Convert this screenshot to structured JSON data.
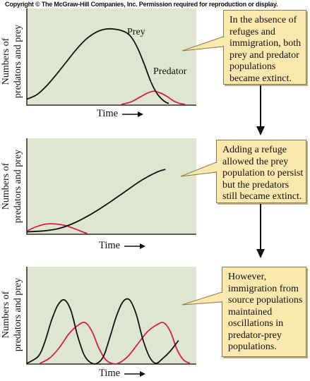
{
  "copyright": "Copyright © The McGraw-Hill Companies, Inc. Permission required for reproduction or display.",
  "y_axis_label": [
    "Numbers of",
    "predators and prey"
  ],
  "x_axis_label": "Time",
  "curve_labels": {
    "prey": "Prey",
    "predator": "Predator"
  },
  "colors": {
    "panel": "#dfe6cf",
    "callout": "#fbe8ad",
    "prey": "#111111",
    "predator": "#d81b4d"
  },
  "panels": [
    {
      "callout": [
        "In the absence of",
        "refuges and",
        "immigration, both",
        "prey and predator",
        "populations",
        "became extinct."
      ],
      "prey": [
        [
          0,
          6
        ],
        [
          6,
          11
        ],
        [
          12,
          21
        ],
        [
          18,
          34
        ],
        [
          24,
          48
        ],
        [
          30,
          62
        ],
        [
          36,
          74
        ],
        [
          42,
          82
        ],
        [
          48,
          86
        ],
        [
          54,
          86
        ],
        [
          60,
          83
        ],
        [
          64,
          77
        ],
        [
          68,
          64
        ],
        [
          72,
          46
        ],
        [
          76,
          26
        ],
        [
          80,
          12
        ],
        [
          84,
          4
        ],
        [
          87,
          1
        ]
      ],
      "predator": [
        [
          58,
          0
        ],
        [
          64,
          3
        ],
        [
          70,
          9
        ],
        [
          74,
          13
        ],
        [
          78,
          15
        ],
        [
          82,
          13
        ],
        [
          86,
          9
        ],
        [
          90,
          4
        ],
        [
          94,
          1
        ],
        [
          97,
          0
        ]
      ]
    },
    {
      "callout": [
        "Adding a refuge",
        "allowed the prey",
        "population to persist",
        "but the predators",
        "still became extinct."
      ],
      "prey": [
        [
          0,
          2
        ],
        [
          10,
          3
        ],
        [
          20,
          6
        ],
        [
          30,
          13
        ],
        [
          40,
          23
        ],
        [
          50,
          35
        ],
        [
          60,
          48
        ],
        [
          70,
          61
        ],
        [
          80,
          71
        ],
        [
          85,
          74
        ]
      ],
      "predator": [
        [
          0,
          3
        ],
        [
          6,
          8
        ],
        [
          12,
          11
        ],
        [
          18,
          11
        ],
        [
          24,
          9
        ],
        [
          30,
          5
        ],
        [
          34,
          2
        ],
        [
          37,
          0
        ]
      ]
    },
    {
      "callout": [
        "However,",
        "immigration from",
        "source populations",
        "maintained",
        "oscillations in",
        "predator-prey",
        "populations."
      ],
      "prey": [
        [
          0,
          0
        ],
        [
          7,
          8
        ],
        [
          11,
          24
        ],
        [
          15,
          48
        ],
        [
          19,
          66
        ],
        [
          23,
          72
        ],
        [
          27,
          60
        ],
        [
          31,
          32
        ],
        [
          35,
          10
        ],
        [
          39,
          1
        ],
        [
          43,
          0
        ],
        [
          47,
          8
        ],
        [
          51,
          30
        ],
        [
          55,
          54
        ],
        [
          59,
          70
        ],
        [
          63,
          72
        ],
        [
          67,
          56
        ],
        [
          71,
          28
        ],
        [
          75,
          8
        ],
        [
          79,
          0
        ],
        [
          83,
          5
        ],
        [
          88,
          14
        ],
        [
          93,
          26
        ]
      ],
      "predator": [
        [
          8,
          0
        ],
        [
          14,
          6
        ],
        [
          20,
          18
        ],
        [
          26,
          34
        ],
        [
          32,
          44
        ],
        [
          36,
          46
        ],
        [
          40,
          36
        ],
        [
          44,
          18
        ],
        [
          48,
          5
        ],
        [
          52,
          0
        ],
        [
          56,
          0
        ],
        [
          62,
          8
        ],
        [
          68,
          22
        ],
        [
          74,
          36
        ],
        [
          80,
          44
        ],
        [
          84,
          46
        ],
        [
          88,
          36
        ],
        [
          92,
          16
        ],
        [
          96,
          4
        ],
        [
          100,
          0
        ]
      ]
    }
  ]
}
